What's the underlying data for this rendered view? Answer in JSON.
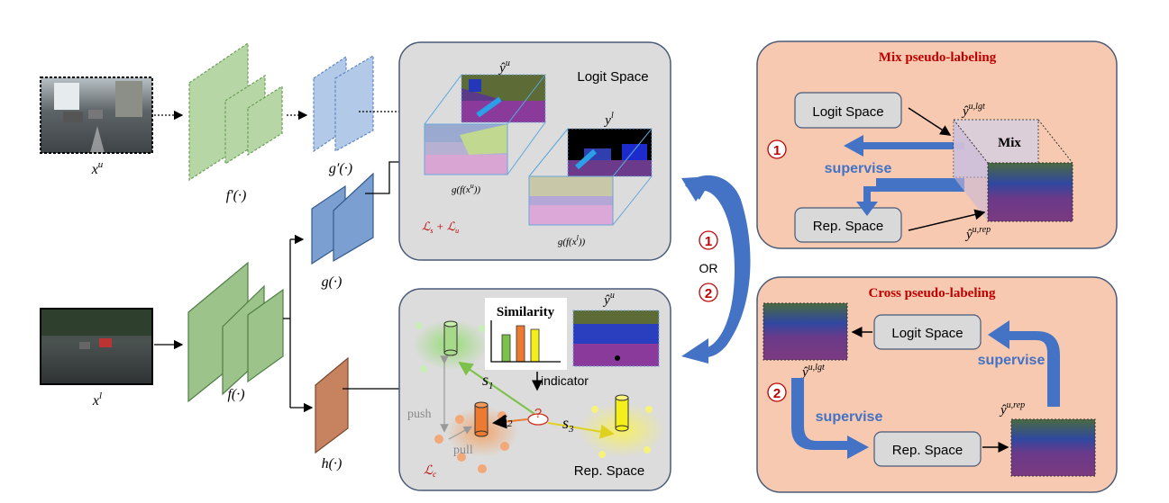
{
  "colors": {
    "panel_gray": "#dcdcdc",
    "panel_border": "#4a5a78",
    "panel_orange": "#f6c9b0",
    "title_red": "#c00000",
    "arrow_blue": "#4472c4",
    "feat_green": "#9bc38a",
    "feat_blue": "#8fb0d8",
    "feat_blue_dark": "#6f93c4",
    "feat_brown": "#c7835f"
  },
  "inputs": {
    "unlabeled_label": "x",
    "unlabeled_sup": "u",
    "labeled_label": "x",
    "labeled_sup": "l"
  },
  "networks": {
    "f_prime": "f′(·)",
    "g_prime": "g′(·)",
    "f": "f(·)",
    "g": "g(·)",
    "h": "h(·)"
  },
  "logit_panel": {
    "title": "Logit Space",
    "y_hat_base": "ŷ",
    "y_hat_sup": "u",
    "y_base": "y",
    "y_sup": "l",
    "gfxu": "g(f(x",
    "gfxu_sup": "u",
    "gfxu_end": "))",
    "gfxl": "g(f(x",
    "gfxl_sup": "l",
    "gfxl_end": "))",
    "loss": "ℒ",
    "loss_s": "s",
    "loss_plus": " + ℒ",
    "loss_u": "u"
  },
  "rep_panel": {
    "title": "Rep. Space",
    "similarity": "Similarity",
    "indicator": "indicator",
    "y_hat_base": "ŷ",
    "y_hat_sup": "u",
    "s1": "s",
    "s1_sub": "1",
    "s2": "s",
    "s2_sub": "2",
    "s3": "s",
    "s3_sub": "3",
    "push": "push",
    "pull": "pull",
    "loss_c": "ℒ",
    "loss_c_sub": "c",
    "query": "?",
    "bars": [
      0.45,
      0.75,
      1.0,
      0.9
    ]
  },
  "middle": {
    "one": "1",
    "or": "OR",
    "two": "2"
  },
  "mix_panel": {
    "title": "Mix pseudo-labeling",
    "number": "1",
    "logit_box": "Logit Space",
    "rep_box": "Rep. Space",
    "supervise": "supervise",
    "mix": "Mix",
    "y_lgt_base": "ŷ",
    "y_lgt_sup": "u,lgt",
    "y_rep_base": "ŷ",
    "y_rep_sup": "u,rep"
  },
  "cross_panel": {
    "title": "Cross pseudo-labeling",
    "number": "2",
    "logit_box": "Logit Space",
    "rep_box": "Rep. Space",
    "supervise_top": "supervise",
    "supervise_bottom": "supervise",
    "y_lgt_base": "ŷ",
    "y_lgt_sup": "u,lgt",
    "y_rep_base": "ŷ",
    "y_rep_sup": "u,rep"
  }
}
